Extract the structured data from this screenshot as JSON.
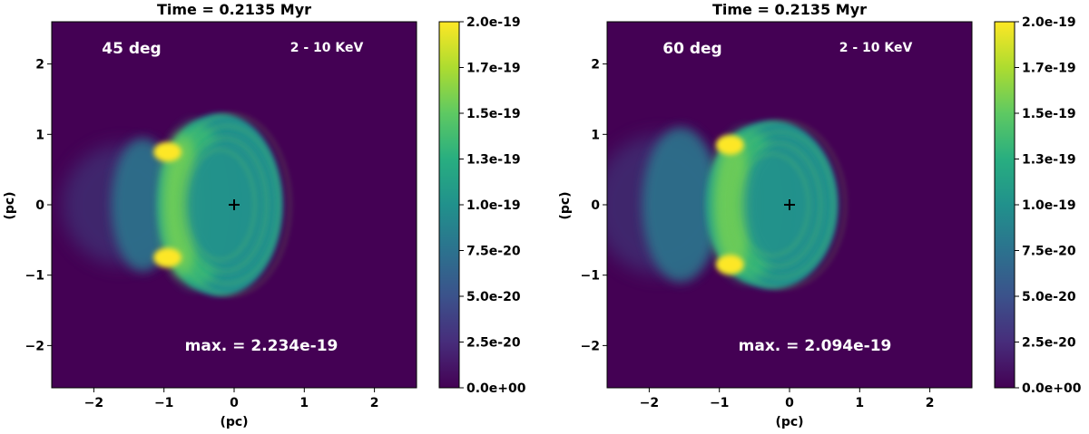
{
  "chart_data": [
    {
      "type": "heatmap",
      "title": "Time = 0.2135 Myr",
      "angle_label": "45 deg",
      "band_label": "2 - 10 KeV",
      "max_label": "max. = 2.234e-19",
      "xlabel": "(pc)",
      "ylabel": "(pc)",
      "xlim": [
        -2.6,
        2.6
      ],
      "ylim": [
        -2.6,
        2.6
      ],
      "xticks": [
        -2,
        -1,
        0,
        1,
        2
      ],
      "yticks": [
        -2,
        -1,
        0,
        1,
        2
      ],
      "xtick_labels": [
        "−2",
        "−1",
        "0",
        "1",
        "2"
      ],
      "ytick_labels": [
        "−2",
        "−1",
        "0",
        "1",
        "2"
      ],
      "center_marker": [
        0,
        0
      ],
      "shell": {
        "cx": -0.2,
        "rx": 0.9,
        "ry": 1.3,
        "inner_cx": -0.1,
        "inner_rx": 0.6,
        "inner_ry": 0.95
      },
      "back_lobe": {
        "cx": -1.3,
        "rx": 0.45,
        "ry": 0.95
      },
      "hotspots": [
        [
          -0.95,
          0.75
        ],
        [
          -0.95,
          -0.75
        ]
      ],
      "colorbar": {
        "vmin": 0.0,
        "vmax": 2e-19,
        "ticks": [
          0.0,
          2.5e-20,
          5e-20,
          7.5e-20,
          1e-19,
          1.25e-19,
          1.5e-19,
          1.75e-19,
          2e-19
        ],
        "tick_labels": [
          "0.0e+00",
          "2.5e-20",
          "5.0e-20",
          "7.5e-20",
          "1.0e-19",
          "1.3e-19",
          "1.5e-19",
          "1.7e-19",
          "2.0e-19"
        ]
      }
    },
    {
      "type": "heatmap",
      "title": "Time = 0.2135 Myr",
      "angle_label": "60 deg",
      "band_label": "2 - 10 KeV",
      "max_label": "max. = 2.094e-19",
      "xlabel": "(pc)",
      "ylabel": "(pc)",
      "xlim": [
        -2.6,
        2.6
      ],
      "ylim": [
        -2.6,
        2.6
      ],
      "xticks": [
        -2,
        -1,
        0,
        1,
        2
      ],
      "yticks": [
        -2,
        -1,
        0,
        1,
        2
      ],
      "xtick_labels": [
        "−2",
        "−1",
        "0",
        "1",
        "2"
      ],
      "ytick_labels": [
        "−2",
        "−1",
        "0",
        "1",
        "2"
      ],
      "center_marker": [
        0,
        0
      ],
      "shell": {
        "cx": -0.25,
        "rx": 0.95,
        "ry": 1.2,
        "inner_cx": -0.1,
        "inner_rx": 0.55,
        "inner_ry": 0.9
      },
      "back_lobe": {
        "cx": -1.55,
        "rx": 0.55,
        "ry": 1.1
      },
      "hotspots": [
        [
          -0.85,
          0.85
        ],
        [
          -0.85,
          -0.85
        ]
      ],
      "colorbar": {
        "vmin": 0.0,
        "vmax": 2e-19,
        "ticks": [
          0.0,
          2.5e-20,
          5e-20,
          7.5e-20,
          1e-19,
          1.25e-19,
          1.5e-19,
          1.75e-19,
          2e-19
        ],
        "tick_labels": [
          "0.0e+00",
          "2.5e-20",
          "5.0e-20",
          "7.5e-20",
          "1.0e-19",
          "1.3e-19",
          "1.5e-19",
          "1.7e-19",
          "2.0e-19"
        ]
      }
    }
  ]
}
